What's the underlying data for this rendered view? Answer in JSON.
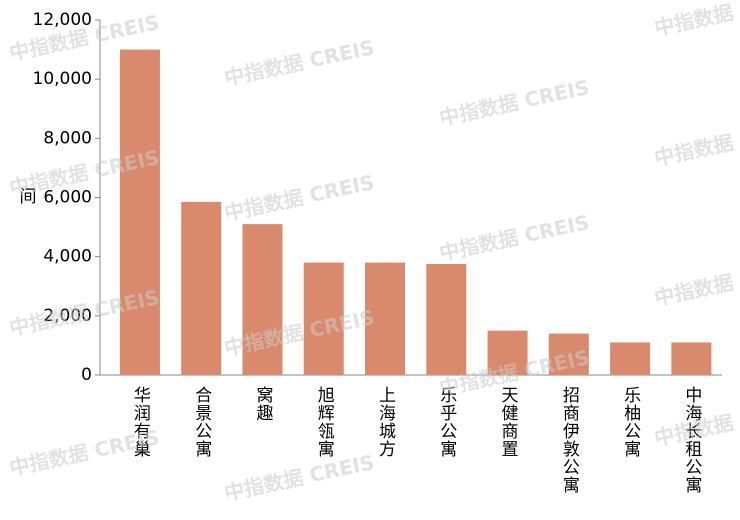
{
  "chart_data": {
    "type": "bar",
    "watermark": "中指数据 CREIS",
    "y_label": "间",
    "categories": [
      "华润有巢",
      "合景公寓",
      "窝趣",
      "旭辉瓴寓",
      "上海城方",
      "乐乎公寓",
      "天健商置",
      "招商伊敦公寓",
      "乐柚公寓",
      "中海长租公寓"
    ],
    "values": [
      11000,
      5850,
      5100,
      3800,
      3800,
      3750,
      1500,
      1400,
      1100,
      1100
    ],
    "color": "#d98a6c",
    "ylim": [
      0,
      12000
    ],
    "yticks": [
      0,
      {
        "value": 2000,
        "label": "2,000"
      },
      {
        "value": 4000,
        "label": "4,000"
      },
      {
        "value": 6000,
        "label": "6,000"
      },
      {
        "value": 8000,
        "label": "8,000"
      },
      {
        "value": 10000,
        "label": "10,000"
      },
      {
        "value": 12000,
        "label": "12,000"
      }
    ],
    "grid": false
  }
}
